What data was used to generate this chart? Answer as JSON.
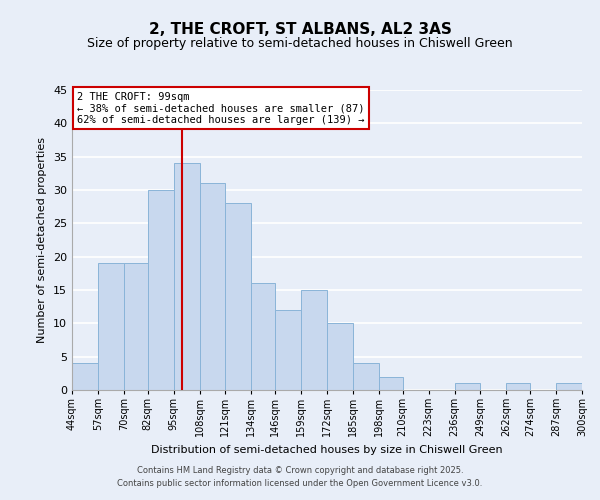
{
  "title": "2, THE CROFT, ST ALBANS, AL2 3AS",
  "subtitle": "Size of property relative to semi-detached houses in Chiswell Green",
  "xlabel": "Distribution of semi-detached houses by size in Chiswell Green",
  "ylabel": "Number of semi-detached properties",
  "bins": [
    44,
    57,
    70,
    82,
    95,
    108,
    121,
    134,
    146,
    159,
    172,
    185,
    198,
    210,
    223,
    236,
    249,
    262,
    274,
    287,
    300
  ],
  "counts": [
    4,
    19,
    19,
    30,
    34,
    31,
    28,
    16,
    12,
    15,
    10,
    4,
    2,
    0,
    0,
    1,
    0,
    1,
    0,
    1
  ],
  "bar_color": "#c8d8ee",
  "bar_edge_color": "#8ab4d8",
  "property_value": 99,
  "vline_color": "#cc0000",
  "annotation_title": "2 THE CROFT: 99sqm",
  "annotation_line1": "← 38% of semi-detached houses are smaller (87)",
  "annotation_line2": "62% of semi-detached houses are larger (139) →",
  "ylim": [
    0,
    45
  ],
  "yticks": [
    0,
    5,
    10,
    15,
    20,
    25,
    30,
    35,
    40,
    45
  ],
  "tick_labels": [
    "44sqm",
    "57sqm",
    "70sqm",
    "82sqm",
    "95sqm",
    "108sqm",
    "121sqm",
    "134sqm",
    "146sqm",
    "159sqm",
    "172sqm",
    "185sqm",
    "198sqm",
    "210sqm",
    "223sqm",
    "236sqm",
    "249sqm",
    "262sqm",
    "274sqm",
    "287sqm",
    "300sqm"
  ],
  "footer_line1": "Contains HM Land Registry data © Crown copyright and database right 2025.",
  "footer_line2": "Contains public sector information licensed under the Open Government Licence v3.0.",
  "bg_color": "#e8eef8",
  "grid_color": "#ffffff",
  "title_fontsize": 11,
  "subtitle_fontsize": 9,
  "ylabel_fontsize": 8,
  "xlabel_fontsize": 8,
  "footer_fontsize": 6
}
